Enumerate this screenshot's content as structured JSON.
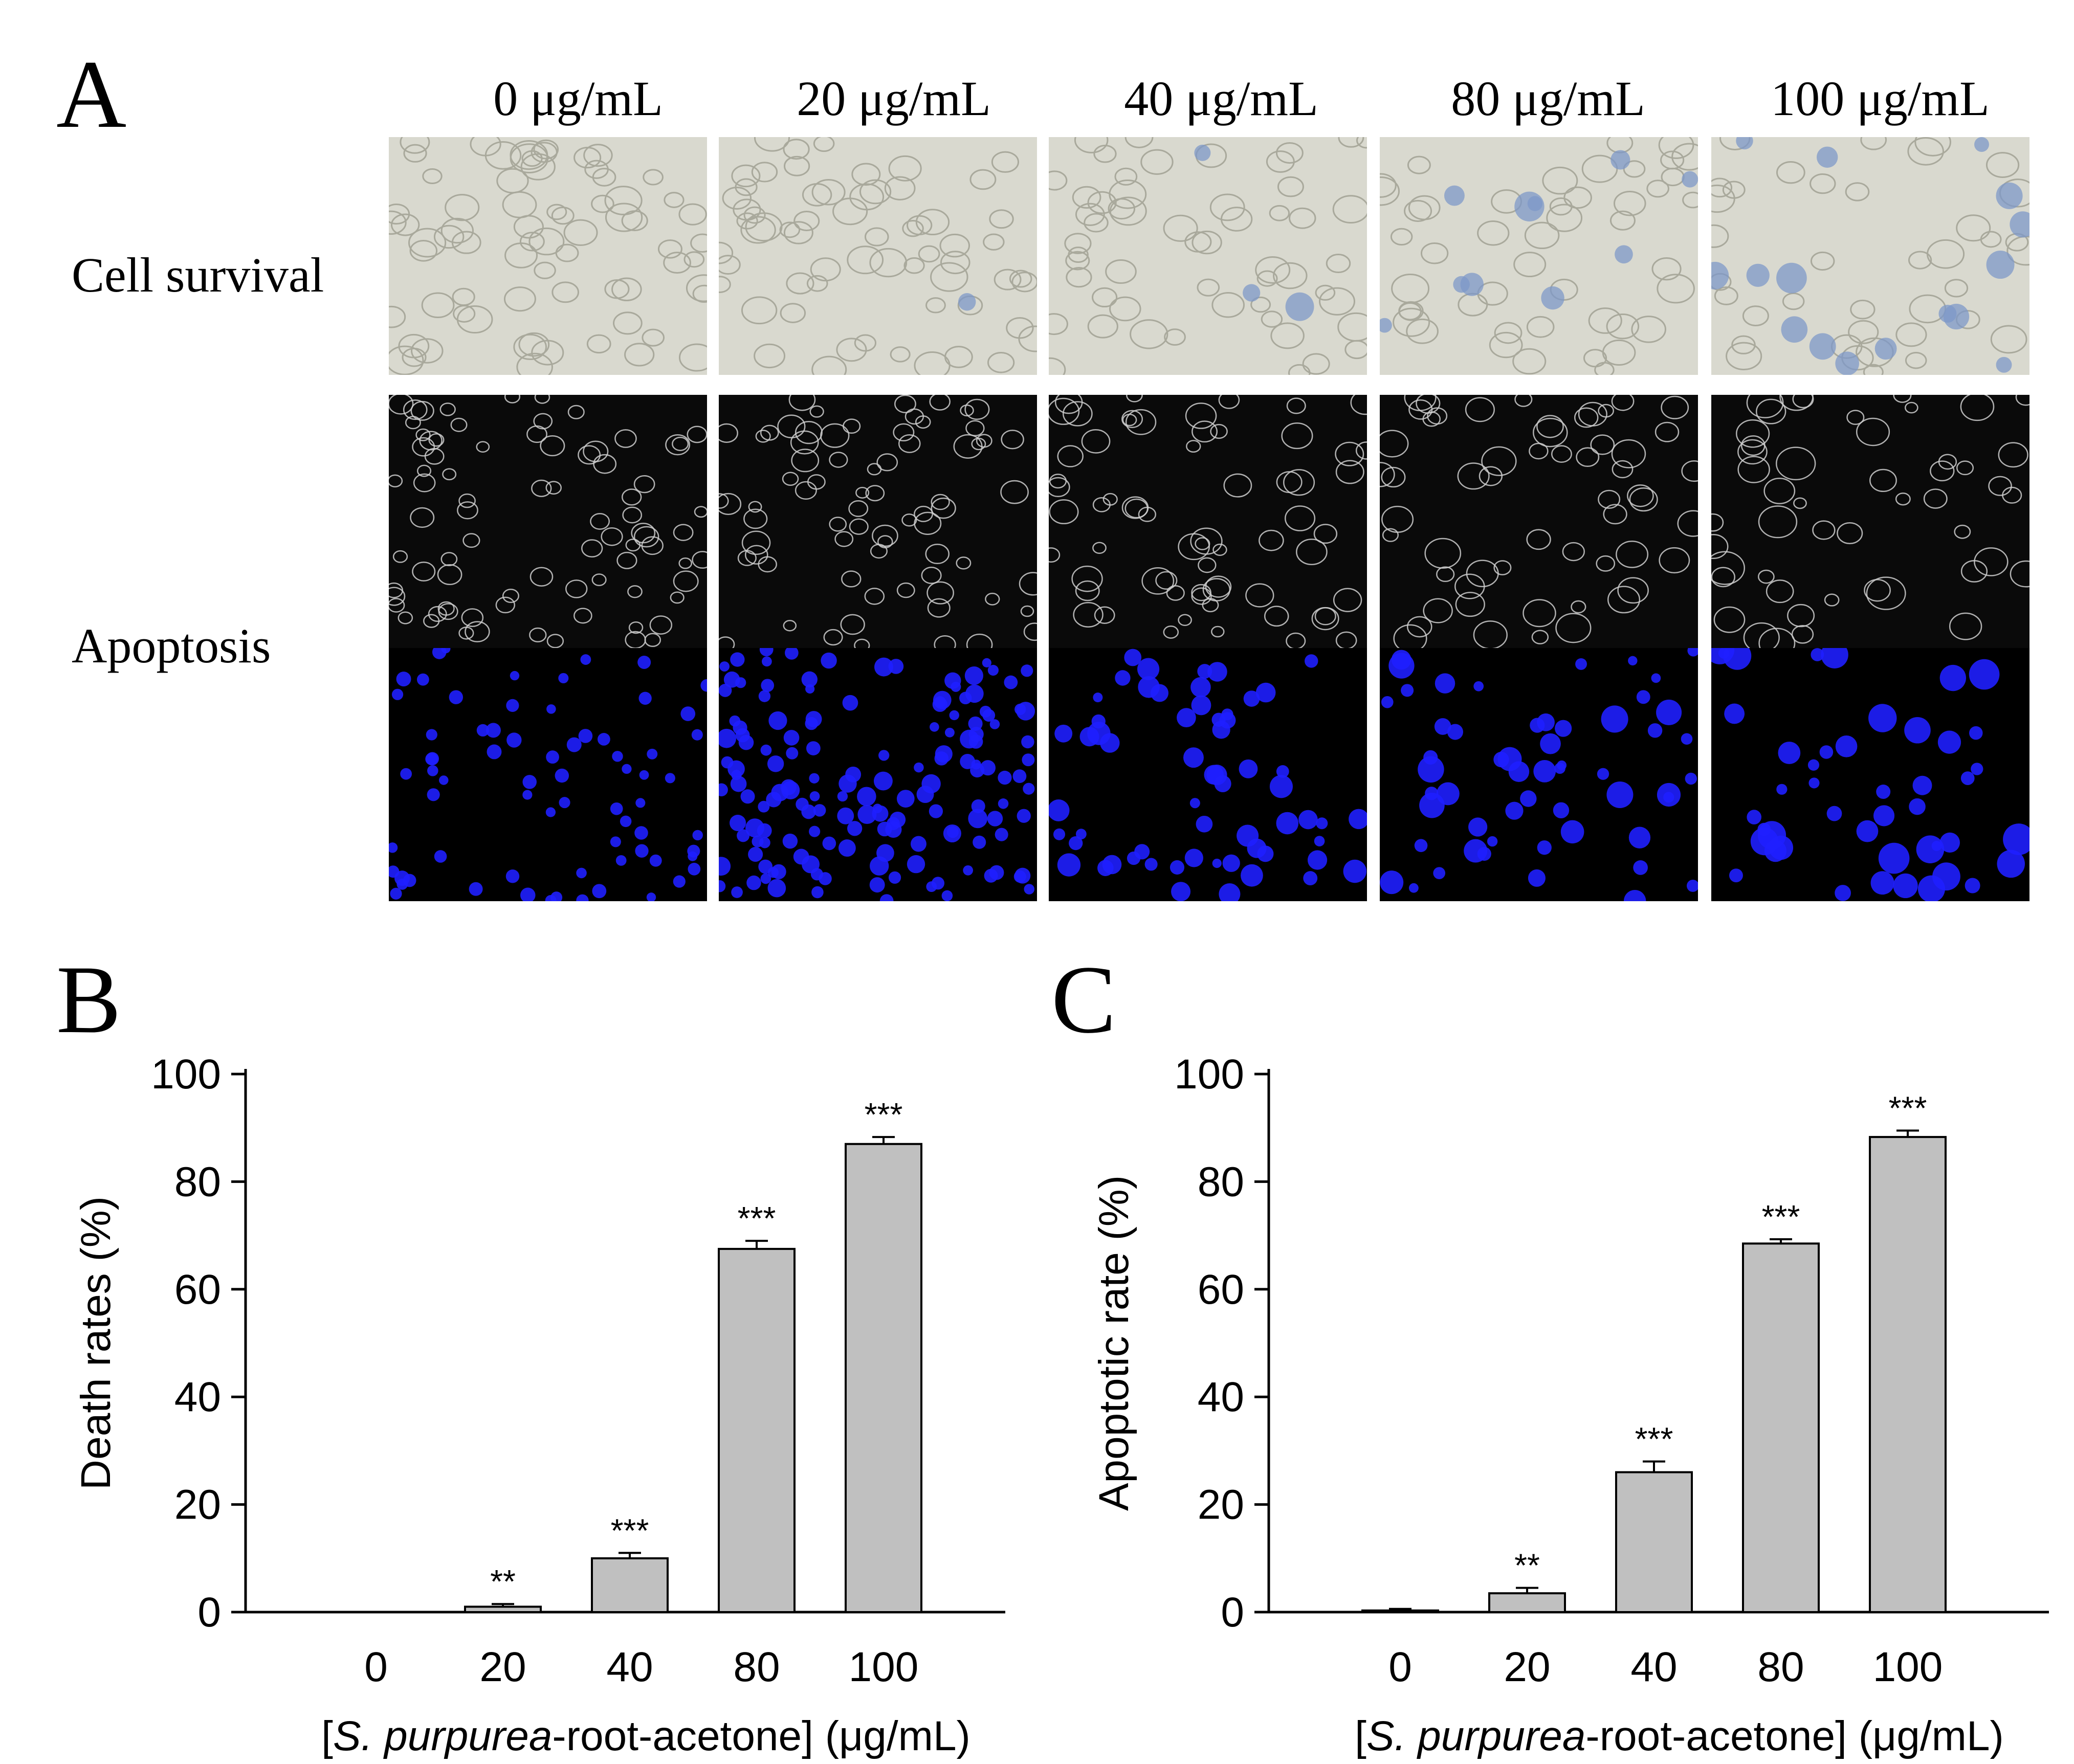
{
  "panels": {
    "a": {
      "letter": "A",
      "concentrations": [
        "0 μg/mL",
        "20 μg/mL",
        "40 μg/mL",
        "80 μg/mL",
        "100 μg/mL"
      ],
      "rows": [
        "Cell survival",
        "Apoptosis"
      ]
    },
    "b": {
      "letter": "B"
    },
    "c": {
      "letter": "C"
    }
  },
  "colors": {
    "bar_fill": "#c0c0c0",
    "bar_stroke": "#000000",
    "survival_bg": "#d9d9cf",
    "survival_stain": "#7d98c8",
    "dapi_nuclei": "#1f1fff",
    "phase_bg": "#0a0a0a"
  },
  "chart_data": [
    {
      "type": "bar",
      "panel": "B",
      "categories": [
        "0",
        "20",
        "40",
        "80",
        "100"
      ],
      "values": [
        0,
        1,
        10,
        67.5,
        87
      ],
      "errors": [
        0,
        0.5,
        1,
        1.5,
        1.3
      ],
      "annotations": [
        "",
        "**",
        "***",
        "***",
        "***"
      ],
      "xlabel_parts": [
        "[",
        "S. purpurea",
        "-root-acetone] (μg/mL)"
      ],
      "ylabel": "Death rates (%)",
      "yticks": [
        "0",
        "20",
        "40",
        "60",
        "80",
        "100"
      ],
      "ylim": [
        0,
        100
      ],
      "grid": false
    },
    {
      "type": "bar",
      "panel": "C",
      "categories": [
        "0",
        "20",
        "40",
        "80",
        "100"
      ],
      "values": [
        0.3,
        3.5,
        26,
        68.5,
        88.3
      ],
      "errors": [
        0.3,
        1,
        2,
        0.8,
        1.2
      ],
      "annotations": [
        "",
        "**",
        "***",
        "***",
        "***"
      ],
      "xlabel_parts": [
        "[",
        "S. purpurea",
        "-root-acetone] (μg/mL)"
      ],
      "ylabel": "Apoptotic rate (%)",
      "yticks": [
        "0",
        "20",
        "40",
        "60",
        "80",
        "100"
      ],
      "ylim": [
        0,
        100
      ],
      "grid": false
    }
  ]
}
